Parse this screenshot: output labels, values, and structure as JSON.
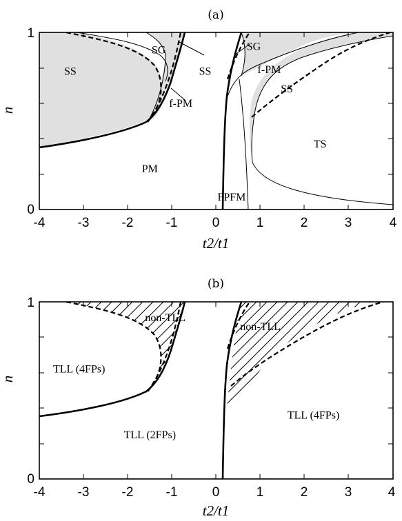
{
  "chart_data": [
    {
      "type": "phase-diagram",
      "panel_label": "(a)",
      "xlabel": "t2/t1",
      "ylabel": "n",
      "xlim": [
        -4,
        4
      ],
      "ylim": [
        0,
        1
      ],
      "xticks": [
        "-4",
        "-3",
        "-2",
        "-1",
        "0",
        "1",
        "2",
        "3",
        "4"
      ],
      "yticks": [
        "0",
        "1"
      ],
      "regions": [
        {
          "label": "SS",
          "x": -3.3,
          "y": 0.78
        },
        {
          "label": "SG",
          "x": -1.3,
          "y": 0.9
        },
        {
          "label": "SS",
          "x": -0.25,
          "y": 0.78
        },
        {
          "label": "f-PM",
          "x": -0.8,
          "y": 0.6
        },
        {
          "label": "PM",
          "x": -1.5,
          "y": 0.23
        },
        {
          "label": "SG",
          "x": 0.85,
          "y": 0.92
        },
        {
          "label": "f-PM",
          "x": 1.2,
          "y": 0.79
        },
        {
          "label": "SS",
          "x": 1.6,
          "y": 0.68
        },
        {
          "label": "TS",
          "x": 2.35,
          "y": 0.37
        },
        {
          "label": "FPFM",
          "x": 0.35,
          "y": 0.07
        }
      ]
    },
    {
      "type": "phase-diagram",
      "panel_label": "(b)",
      "xlabel": "t2/t1",
      "ylabel": "n",
      "xlim": [
        -4,
        4
      ],
      "ylim": [
        0,
        1
      ],
      "xticks": [
        "-4",
        "-3",
        "-2",
        "-1",
        "0",
        "1",
        "2",
        "3",
        "4"
      ],
      "yticks": [
        "0",
        "1"
      ],
      "regions": [
        {
          "label": "non-TLL",
          "x": -1.15,
          "y": 0.91
        },
        {
          "label": "TLL (4FPs)",
          "x": -3.1,
          "y": 0.62
        },
        {
          "label": "TLL (2FPs)",
          "x": -1.5,
          "y": 0.25
        },
        {
          "label": "non-TLL",
          "x": 1.0,
          "y": 0.86
        },
        {
          "label": "TLL (4FPs)",
          "x": 2.2,
          "y": 0.36
        }
      ]
    }
  ]
}
